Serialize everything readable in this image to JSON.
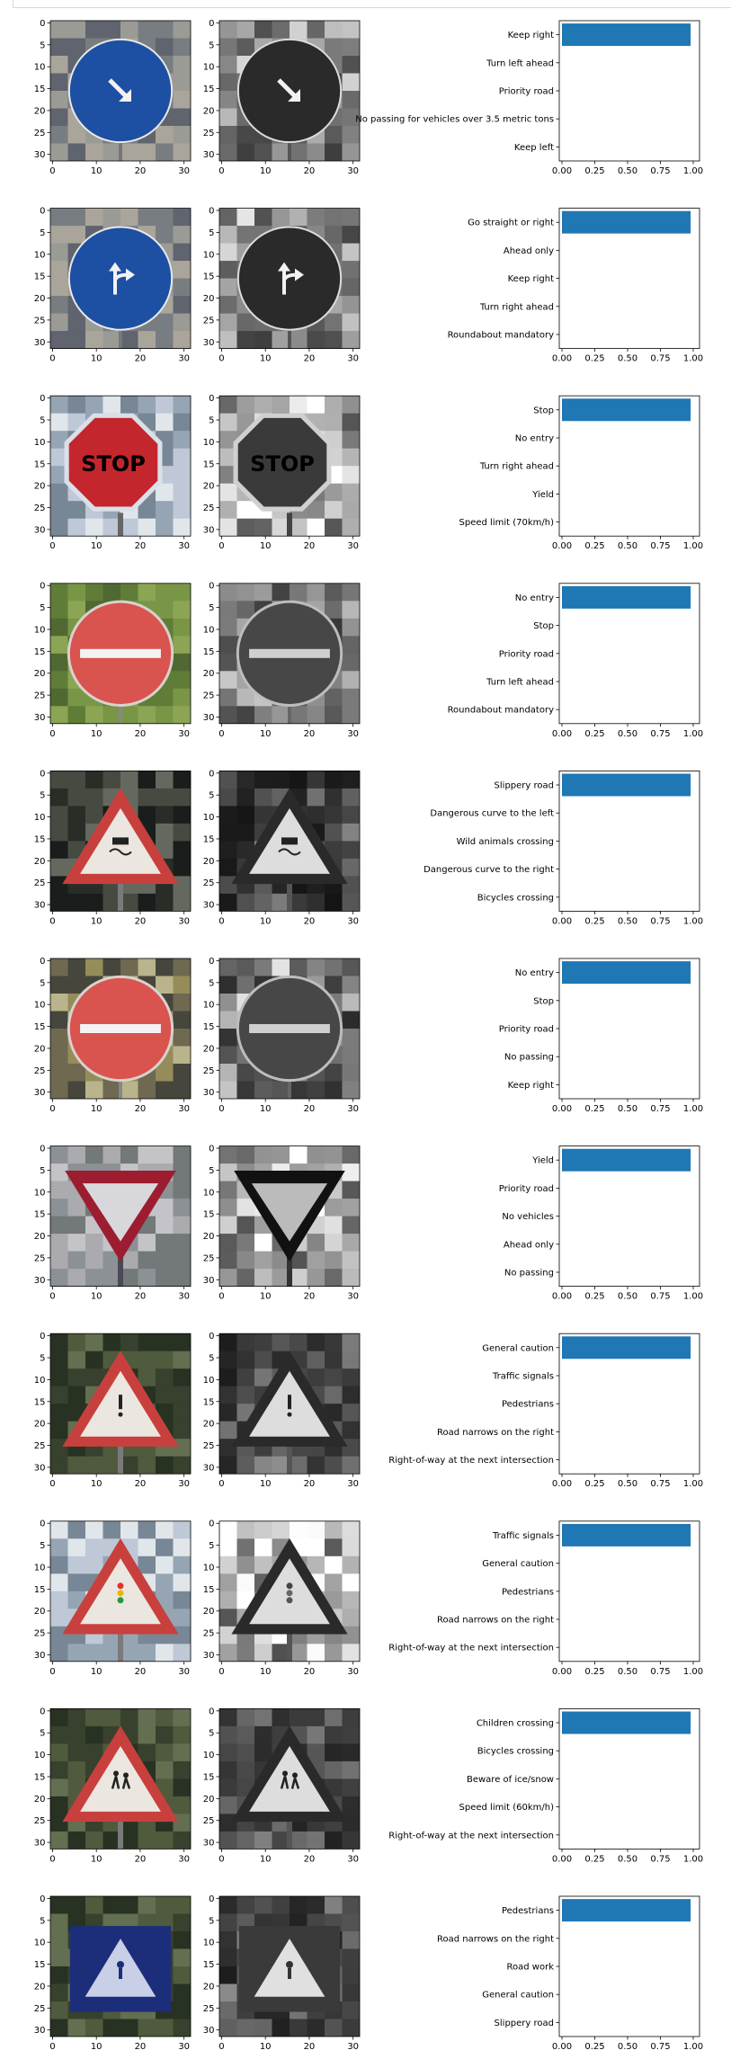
{
  "figure": {
    "image_axis_ticks_y": [
      "0",
      "5",
      "10",
      "15",
      "20",
      "25",
      "30"
    ],
    "image_axis_ticks_x": [
      "0",
      "10",
      "20",
      "30"
    ],
    "bar_color": "#1f77b4"
  },
  "chart_data": [
    {
      "type": "bar",
      "orientation": "horizontal",
      "categories": [
        "Keep right",
        "Turn left ahead",
        "Priority road",
        "No passing for vehicles over 3.5 metric tons",
        "Keep left"
      ],
      "values": [
        0.98,
        0.0,
        0.0,
        0.0,
        0.0
      ],
      "xlim": [
        0,
        1.0
      ],
      "xticks": [
        "0.00",
        "0.25",
        "0.50",
        "0.75",
        "1.00"
      ],
      "sign": "keep-right",
      "image_tone": "blue"
    },
    {
      "type": "bar",
      "orientation": "horizontal",
      "categories": [
        "Go straight or right",
        "Ahead only",
        "Keep right",
        "Turn right ahead",
        "Roundabout mandatory"
      ],
      "values": [
        0.98,
        0.0,
        0.0,
        0.0,
        0.0
      ],
      "xlim": [
        0,
        1.0
      ],
      "xticks": [
        "0.00",
        "0.25",
        "0.50",
        "0.75",
        "1.00"
      ],
      "sign": "straight-right",
      "image_tone": "blue"
    },
    {
      "type": "bar",
      "orientation": "horizontal",
      "categories": [
        "Stop",
        "No entry",
        "Turn right ahead",
        "Yield",
        "Speed limit (70km/h)"
      ],
      "values": [
        0.98,
        0.0,
        0.0,
        0.0,
        0.0
      ],
      "xlim": [
        0,
        1.0
      ],
      "xticks": [
        "0.00",
        "0.25",
        "0.50",
        "0.75",
        "1.00"
      ],
      "sign": "stop",
      "sign_text": "STOP",
      "image_tone": "sky"
    },
    {
      "type": "bar",
      "orientation": "horizontal",
      "categories": [
        "No entry",
        "Stop",
        "Priority road",
        "Turn left ahead",
        "Roundabout mandatory"
      ],
      "values": [
        0.98,
        0.0,
        0.0,
        0.0,
        0.0
      ],
      "xlim": [
        0,
        1.0
      ],
      "xticks": [
        "0.00",
        "0.25",
        "0.50",
        "0.75",
        "1.00"
      ],
      "sign": "no-entry",
      "image_tone": "grass"
    },
    {
      "type": "bar",
      "orientation": "horizontal",
      "categories": [
        "Slippery road",
        "Dangerous curve to the left",
        "Wild animals crossing",
        "Dangerous curve to the right",
        "Bicycles crossing"
      ],
      "values": [
        0.98,
        0.0,
        0.0,
        0.0,
        0.0
      ],
      "xlim": [
        0,
        1.0
      ],
      "xticks": [
        "0.00",
        "0.25",
        "0.50",
        "0.75",
        "1.00"
      ],
      "sign": "warning-slippery",
      "image_tone": "dark"
    },
    {
      "type": "bar",
      "orientation": "horizontal",
      "categories": [
        "No entry",
        "Stop",
        "Priority road",
        "No passing",
        "Keep right"
      ],
      "values": [
        0.98,
        0.0,
        0.0,
        0.0,
        0.0
      ],
      "xlim": [
        0,
        1.0
      ],
      "xticks": [
        "0.00",
        "0.25",
        "0.50",
        "0.75",
        "1.00"
      ],
      "sign": "no-entry",
      "image_tone": "olive"
    },
    {
      "type": "bar",
      "orientation": "horizontal",
      "categories": [
        "Yield",
        "Priority road",
        "No vehicles",
        "Ahead only",
        "No passing"
      ],
      "values": [
        0.98,
        0.0,
        0.0,
        0.0,
        0.0
      ],
      "xlim": [
        0,
        1.0
      ],
      "xticks": [
        "0.00",
        "0.25",
        "0.50",
        "0.75",
        "1.00"
      ],
      "sign": "yield",
      "image_tone": "pale"
    },
    {
      "type": "bar",
      "orientation": "horizontal",
      "categories": [
        "General caution",
        "Traffic signals",
        "Pedestrians",
        "Road narrows on the right",
        "Right-of-way at the next intersection"
      ],
      "values": [
        0.98,
        0.0,
        0.0,
        0.0,
        0.0
      ],
      "xlim": [
        0,
        1.0
      ],
      "xticks": [
        "0.00",
        "0.25",
        "0.50",
        "0.75",
        "1.00"
      ],
      "sign": "warning-caution",
      "image_tone": "forest"
    },
    {
      "type": "bar",
      "orientation": "horizontal",
      "categories": [
        "Traffic signals",
        "General caution",
        "Pedestrians",
        "Road narrows on the right",
        "Right-of-way at the next intersection"
      ],
      "values": [
        0.98,
        0.0,
        0.0,
        0.0,
        0.0
      ],
      "xlim": [
        0,
        1.0
      ],
      "xticks": [
        "0.00",
        "0.25",
        "0.50",
        "0.75",
        "1.00"
      ],
      "sign": "warning-signals",
      "image_tone": "sky"
    },
    {
      "type": "bar",
      "orientation": "horizontal",
      "categories": [
        "Children crossing",
        "Bicycles crossing",
        "Beware of ice/snow",
        "Speed limit (60km/h)",
        "Right-of-way at the next intersection"
      ],
      "values": [
        0.98,
        0.0,
        0.0,
        0.0,
        0.0
      ],
      "xlim": [
        0,
        1.0
      ],
      "xticks": [
        "0.00",
        "0.25",
        "0.50",
        "0.75",
        "1.00"
      ],
      "sign": "warning-children",
      "image_tone": "forest"
    },
    {
      "type": "bar",
      "orientation": "horizontal",
      "categories": [
        "Pedestrians",
        "Road narrows on the right",
        "Road work",
        "General caution",
        "Slippery road"
      ],
      "values": [
        0.98,
        0.0,
        0.0,
        0.0,
        0.0
      ],
      "xlim": [
        0,
        1.0
      ],
      "xticks": [
        "0.00",
        "0.25",
        "0.50",
        "0.75",
        "1.00"
      ],
      "sign": "pedestrian-square",
      "image_tone": "forest"
    }
  ]
}
